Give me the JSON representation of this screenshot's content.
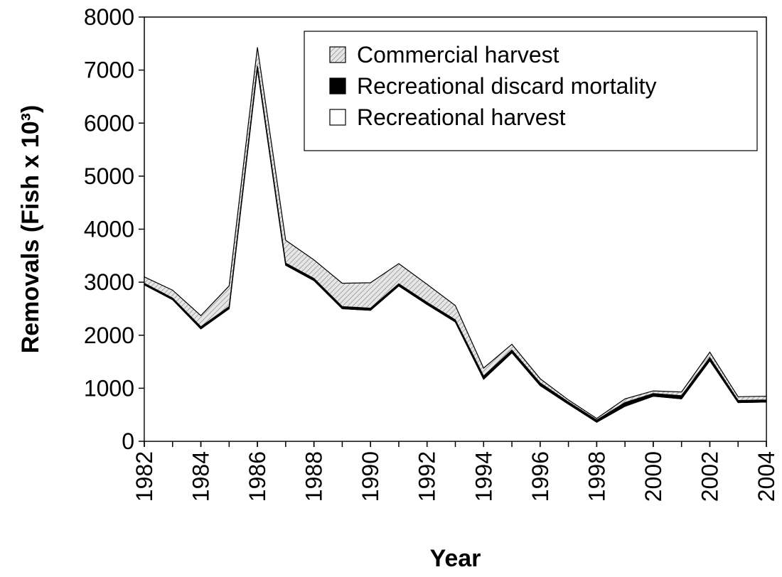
{
  "chart_data": {
    "type": "stacked_area",
    "x_label": "Year",
    "y_label": "Removals (Fish x 10³)",
    "x": [
      1982,
      1983,
      1984,
      1985,
      1986,
      1987,
      1988,
      1989,
      1990,
      1991,
      1992,
      1993,
      1994,
      1995,
      1996,
      1997,
      1998,
      1999,
      2000,
      2001,
      2002,
      2003,
      2004
    ],
    "xlim": [
      1982,
      2004
    ],
    "xticks": [
      1982,
      1984,
      1986,
      1988,
      1990,
      1992,
      1994,
      1996,
      1998,
      2000,
      2002,
      2004
    ],
    "ylim": [
      0,
      8000
    ],
    "yticks": [
      0,
      1000,
      2000,
      3000,
      4000,
      5000,
      6000,
      7000,
      8000
    ],
    "legend": "top-right",
    "series": [
      {
        "name": "Commercial harvest",
        "color": "#d9d9d9",
        "pattern": "hatch",
        "values": [
          120,
          150,
          210,
          390,
          350,
          430,
          350,
          440,
          480,
          380,
          340,
          270,
          150,
          110,
          80,
          40,
          30,
          70,
          50,
          70,
          100,
          70,
          70
        ]
      },
      {
        "name": "Recreational discard mortality",
        "color": "#000000",
        "values": [
          30,
          30,
          40,
          40,
          50,
          40,
          40,
          40,
          40,
          40,
          40,
          40,
          60,
          50,
          50,
          40,
          40,
          70,
          50,
          60,
          60,
          40,
          40
        ]
      },
      {
        "name": "Recreational harvest",
        "color": "#ffffff",
        "values": [
          2950,
          2670,
          2120,
          2500,
          7030,
          3320,
          3030,
          2500,
          2470,
          2930,
          2580,
          2250,
          1170,
          1670,
          1050,
          700,
          360,
          660,
          850,
          800,
          1520,
          730,
          740
        ]
      }
    ]
  }
}
